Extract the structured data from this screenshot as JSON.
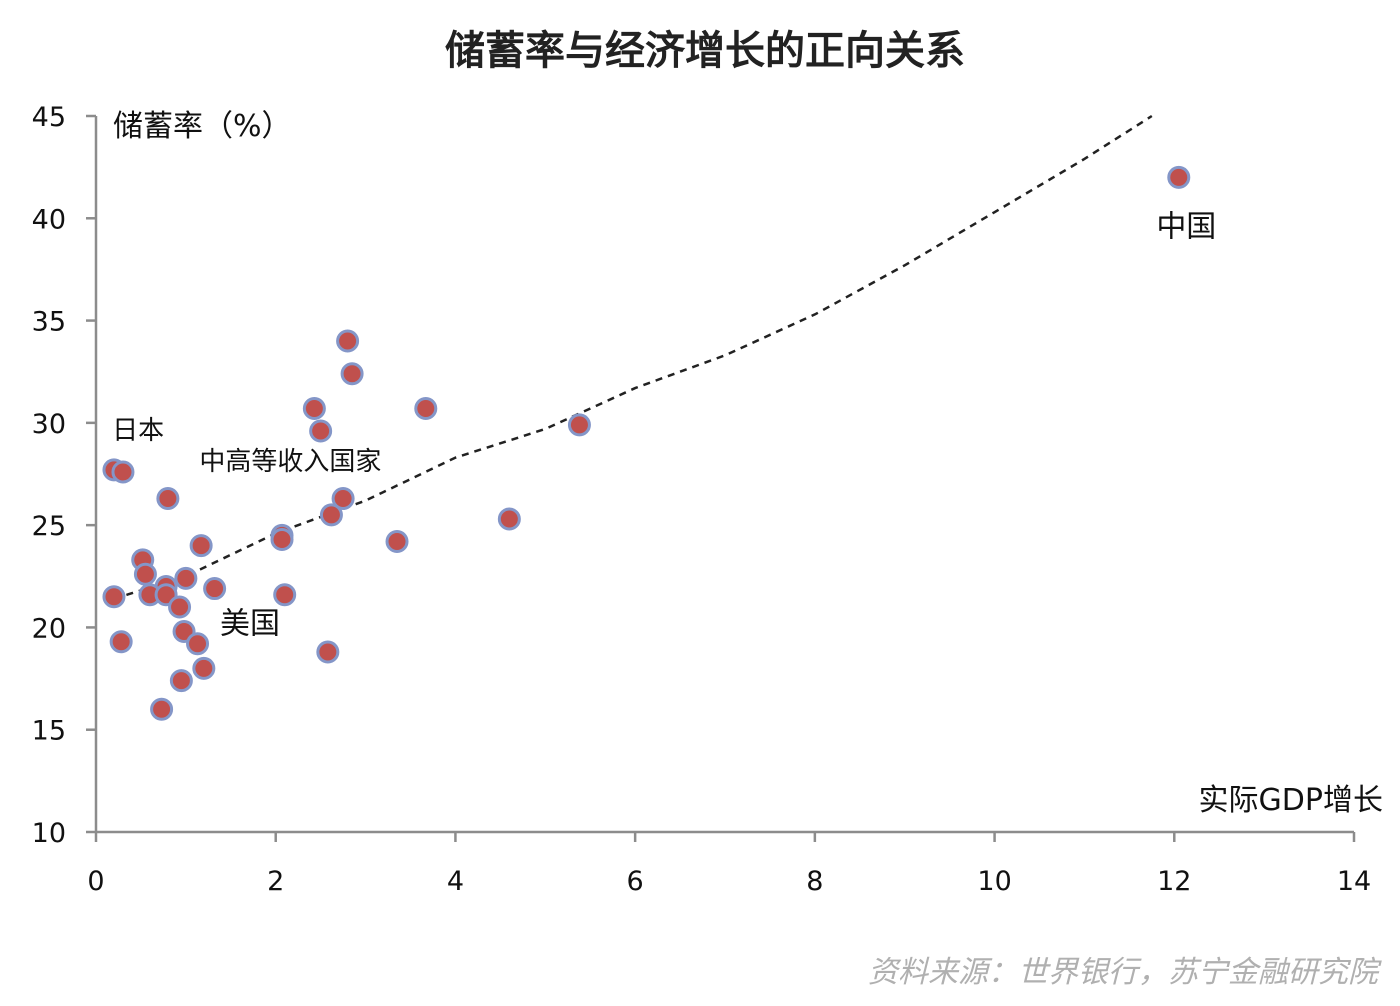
{
  "chart_data": {
    "type": "scatter",
    "title": "储蓄率与经济增长的正向关系",
    "xlabel": "实际GDP增长",
    "ylabel": "储蓄率（%）",
    "xlim": [
      0,
      14
    ],
    "ylim": [
      10,
      45
    ],
    "x_ticks": [
      "0",
      "2",
      "4",
      "6",
      "8",
      "10",
      "12",
      "14"
    ],
    "y_ticks": [
      "10",
      "15",
      "20",
      "25",
      "30",
      "35",
      "40",
      "45"
    ],
    "grid": false,
    "legend": "none",
    "marker_fill": "#c0504d",
    "marker_edge": "#8496c8",
    "trendline": {
      "style": "dashed",
      "color": "#222222",
      "points": [
        [
          0.2,
          21.4
        ],
        [
          1,
          22.5
        ],
        [
          2,
          24.6
        ],
        [
          3,
          26.2
        ],
        [
          4,
          28.3
        ],
        [
          5,
          29.7
        ],
        [
          6,
          31.7
        ],
        [
          7,
          33.3
        ],
        [
          8,
          35.3
        ],
        [
          9,
          37.7
        ],
        [
          10,
          40.3
        ],
        [
          11,
          42.9
        ],
        [
          11.75,
          45
        ]
      ]
    },
    "points": [
      {
        "x": 12.05,
        "y": 42.0
      },
      {
        "x": 5.38,
        "y": 29.9
      },
      {
        "x": 4.6,
        "y": 25.3
      },
      {
        "x": 3.67,
        "y": 30.7
      },
      {
        "x": 3.35,
        "y": 24.2
      },
      {
        "x": 2.8,
        "y": 34.0
      },
      {
        "x": 2.85,
        "y": 32.4
      },
      {
        "x": 2.43,
        "y": 30.7
      },
      {
        "x": 2.5,
        "y": 29.6
      },
      {
        "x": 2.75,
        "y": 26.3
      },
      {
        "x": 2.62,
        "y": 25.5
      },
      {
        "x": 2.07,
        "y": 24.5
      },
      {
        "x": 2.07,
        "y": 24.3
      },
      {
        "x": 2.1,
        "y": 21.6
      },
      {
        "x": 2.58,
        "y": 18.8
      },
      {
        "x": 0.2,
        "y": 27.7
      },
      {
        "x": 0.3,
        "y": 27.6
      },
      {
        "x": 0.8,
        "y": 26.3
      },
      {
        "x": 1.17,
        "y": 24.0
      },
      {
        "x": 0.52,
        "y": 23.3
      },
      {
        "x": 0.55,
        "y": 22.6
      },
      {
        "x": 1.0,
        "y": 22.4
      },
      {
        "x": 0.78,
        "y": 22.0
      },
      {
        "x": 0.6,
        "y": 21.6
      },
      {
        "x": 0.78,
        "y": 21.6
      },
      {
        "x": 1.32,
        "y": 21.9
      },
      {
        "x": 0.2,
        "y": 21.5
      },
      {
        "x": 0.93,
        "y": 21.0
      },
      {
        "x": 0.98,
        "y": 19.8
      },
      {
        "x": 1.13,
        "y": 19.2
      },
      {
        "x": 0.28,
        "y": 19.3
      },
      {
        "x": 1.2,
        "y": 18.0
      },
      {
        "x": 0.95,
        "y": 17.4
      },
      {
        "x": 0.73,
        "y": 16.0
      }
    ],
    "annotations": [
      {
        "text": "中国",
        "x": 11.8,
        "y": 39.1,
        "size": "large"
      },
      {
        "text": "日本",
        "x": 0.18,
        "y": 29.2,
        "size": "small"
      },
      {
        "text": "中高等收入国家",
        "x": 1.15,
        "y": 27.7,
        "size": "small"
      },
      {
        "text": "美国",
        "x": 1.38,
        "y": 19.7,
        "size": "large"
      }
    ]
  },
  "source_note": "资料来源：世界银行，苏宁金融研究院"
}
